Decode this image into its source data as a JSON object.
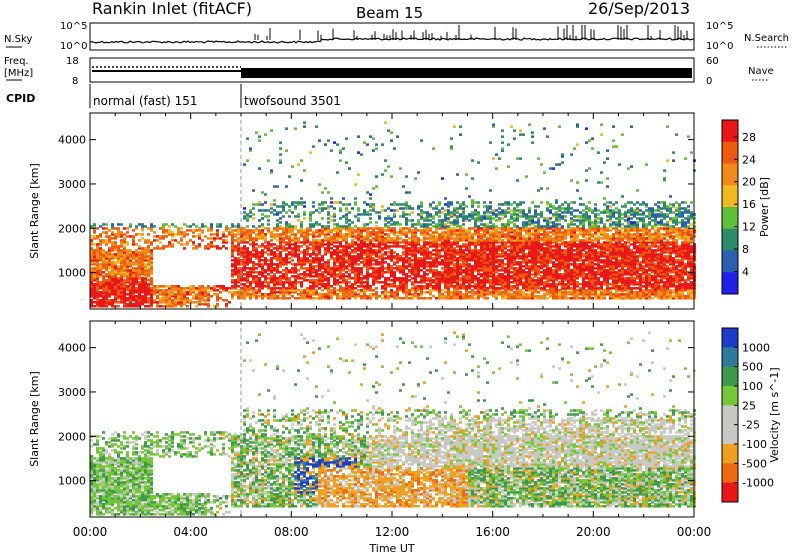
{
  "header": {
    "station": "Rankin Inlet (fitACF)",
    "beam": "Beam 15",
    "date": "26/Sep/2013"
  },
  "strip": {
    "nsky_label": "N.Sky",
    "nsky_scale_top": "10^5",
    "nsky_scale_bottom": "10^0",
    "nsearch_label": "N.Search",
    "freq_label_1": "Freq.",
    "freq_label_2": "[MHz]",
    "freq_ticks": [
      "18",
      "8"
    ],
    "nave_label": "Nave",
    "nave_ticks": [
      "60",
      "0"
    ],
    "cpid_label": "CPID",
    "cpid_segments": [
      {
        "start": 0,
        "end": 6.0,
        "name": "normal (fast) 151"
      },
      {
        "start": 6.0,
        "end": 24,
        "name": "twofsound 3501"
      }
    ]
  },
  "chart_data": [
    {
      "type": "heatmap",
      "name": "power",
      "ylabel": "Slant Range [km]",
      "ylim": [
        180,
        4600
      ],
      "yticks": [
        1000,
        2000,
        3000,
        4000
      ],
      "colorbar": {
        "label": "Power [dB]",
        "ticks": [
          4,
          8,
          12,
          16,
          20,
          24,
          28
        ],
        "range": [
          0,
          31
        ],
        "colors": [
          "#2020e8",
          "#2d5fb0",
          "#2e8a6a",
          "#5fbf3a",
          "#f2b820",
          "#f08a1a",
          "#ee5a10",
          "#e81818"
        ]
      }
    },
    {
      "type": "heatmap",
      "name": "velocity",
      "ylabel": "Slant Range [km]",
      "ylim": [
        180,
        4600
      ],
      "yticks": [
        1000,
        2000,
        3000,
        4000
      ],
      "colorbar": {
        "label": "Velocity [m s^-1]",
        "ticks": [
          "1000",
          "500",
          "100",
          "25",
          "-25",
          "-100",
          "-500",
          "-1000"
        ],
        "colors": [
          "#1c3cc8",
          "#2e7a9c",
          "#3c9a4a",
          "#74c838",
          "#c8c8c4",
          "#c8c8c4",
          "#f0a020",
          "#ee6a10",
          "#e81818"
        ]
      }
    }
  ],
  "time_axis": {
    "xlabel": "Time UT",
    "xlim": [
      0,
      24
    ],
    "ticks": [
      "00:00",
      "04:00",
      "08:00",
      "12:00",
      "16:00",
      "20:00",
      "00:00"
    ]
  }
}
